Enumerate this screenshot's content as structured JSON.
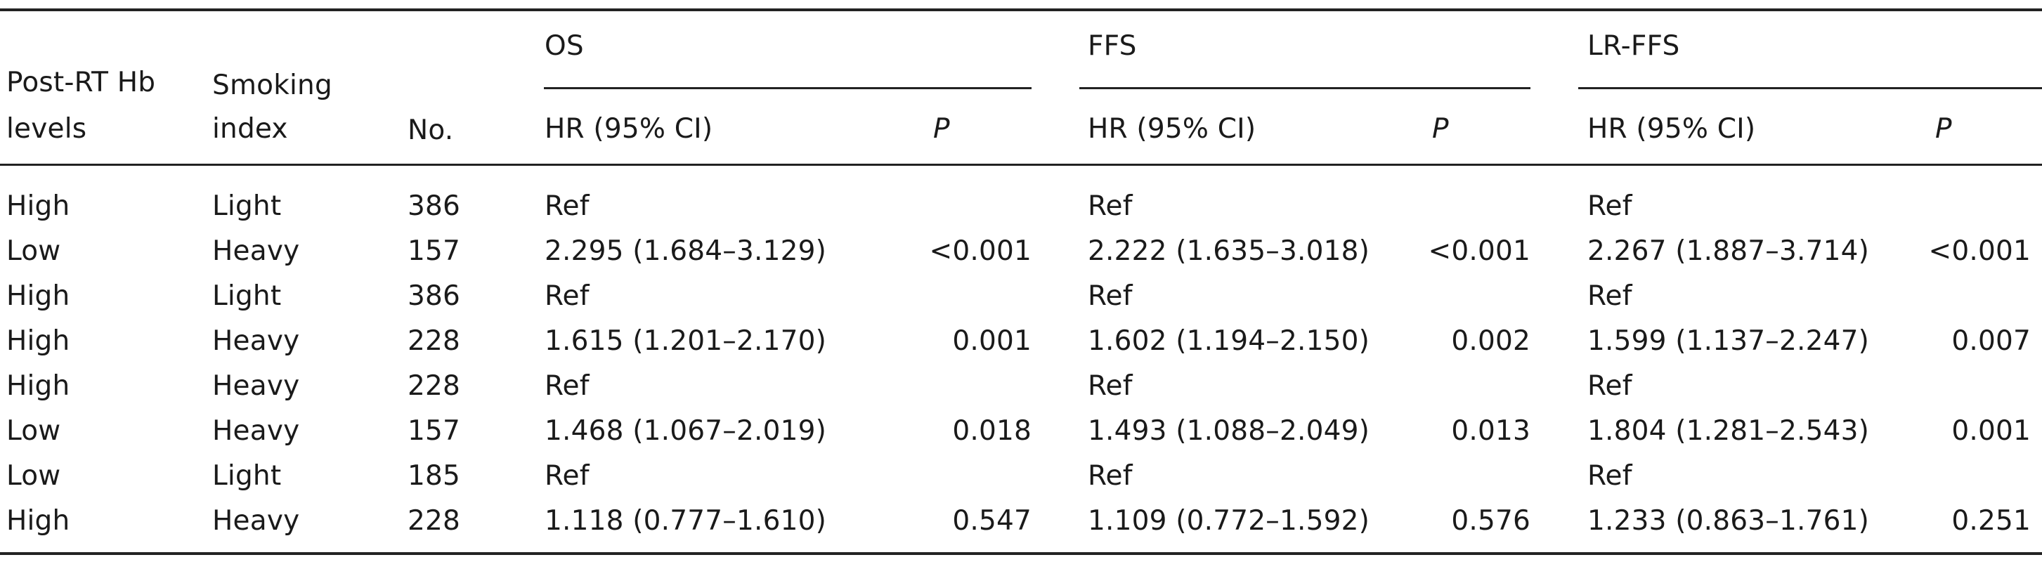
{
  "table": {
    "group_headers": [
      "OS",
      "FFS",
      "LR-FFS"
    ],
    "stub_headers": {
      "hb_line1": "Post-RT Hb",
      "hb_line2": "levels",
      "smoke_line1": "Smoking",
      "smoke_line2": "index",
      "no": "No."
    },
    "sub_headers": {
      "hr": "HR (95% CI)",
      "p": "P"
    },
    "rows": [
      {
        "hb": "High",
        "smoking": "Light",
        "no": "386",
        "os_hr": "Ref",
        "os_p": "",
        "ffs_hr": "Ref",
        "ffs_p": "",
        "lrffs_hr": "Ref",
        "lrffs_p": ""
      },
      {
        "hb": "Low",
        "smoking": "Heavy",
        "no": "157",
        "os_hr": "2.295 (1.684–3.129)",
        "os_p": "<0.001",
        "ffs_hr": "2.222 (1.635–3.018)",
        "ffs_p": "<0.001",
        "lrffs_hr": "2.267 (1.887–3.714)",
        "lrffs_p": "<0.001"
      },
      {
        "hb": "High",
        "smoking": "Light",
        "no": "386",
        "os_hr": "Ref",
        "os_p": "",
        "ffs_hr": "Ref",
        "ffs_p": "",
        "lrffs_hr": "Ref",
        "lrffs_p": ""
      },
      {
        "hb": "High",
        "smoking": "Heavy",
        "no": "228",
        "os_hr": "1.615 (1.201–2.170)",
        "os_p": "0.001",
        "ffs_hr": "1.602 (1.194–2.150)",
        "ffs_p": "0.002",
        "lrffs_hr": "1.599 (1.137–2.247)",
        "lrffs_p": "0.007"
      },
      {
        "hb": "High",
        "smoking": "Heavy",
        "no": "228",
        "os_hr": "Ref",
        "os_p": "",
        "ffs_hr": "Ref",
        "ffs_p": "",
        "lrffs_hr": "Ref",
        "lrffs_p": ""
      },
      {
        "hb": "Low",
        "smoking": "Heavy",
        "no": "157",
        "os_hr": "1.468 (1.067–2.019)",
        "os_p": "0.018",
        "ffs_hr": "1.493 (1.088–2.049)",
        "ffs_p": "0.013",
        "lrffs_hr": "1.804 (1.281–2.543)",
        "lrffs_p": "0.001"
      },
      {
        "hb": "Low",
        "smoking": "Light",
        "no": "185",
        "os_hr": "Ref",
        "os_p": "",
        "ffs_hr": "Ref",
        "ffs_p": "",
        "lrffs_hr": "Ref",
        "lrffs_p": ""
      },
      {
        "hb": "High",
        "smoking": "Heavy",
        "no": "228",
        "os_hr": "1.118 (0.777–1.610)",
        "os_p": "0.547",
        "ffs_hr": "1.109 (0.772–1.592)",
        "ffs_p": "0.576",
        "lrffs_hr": "1.233 (0.863–1.761)",
        "lrffs_p": "0.251"
      }
    ]
  }
}
